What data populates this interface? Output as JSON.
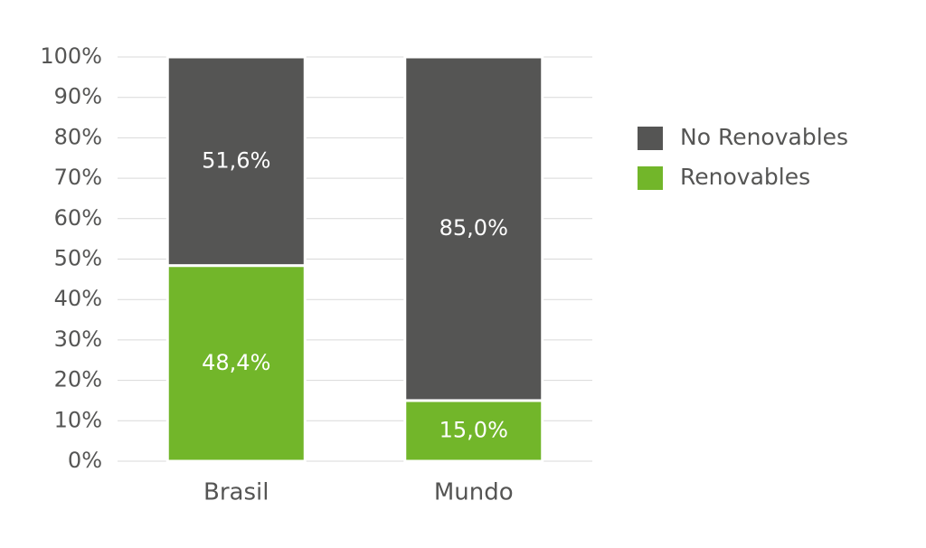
{
  "chart_data": {
    "type": "stacked-bar",
    "categories": [
      "Brasil",
      "Mundo"
    ],
    "series": [
      {
        "name": "Renovables",
        "color": "#72b62a",
        "values": [
          48.4,
          15.0
        ],
        "value_labels": [
          "48,4%",
          "15,0%"
        ]
      },
      {
        "name": "No Renovables",
        "color": "#555554",
        "values": [
          51.6,
          85.0
        ],
        "value_labels": [
          "51,6%",
          "85,0%"
        ]
      }
    ],
    "ylim": [
      0,
      100
    ],
    "yticks": [
      {
        "value": 0,
        "label": "0%"
      },
      {
        "value": 10,
        "label": "10%"
      },
      {
        "value": 20,
        "label": "20%"
      },
      {
        "value": 30,
        "label": "30%"
      },
      {
        "value": 40,
        "label": "40%"
      },
      {
        "value": 50,
        "label": "50%"
      },
      {
        "value": 60,
        "label": "60%"
      },
      {
        "value": 70,
        "label": "70%"
      },
      {
        "value": 80,
        "label": "80%"
      },
      {
        "value": 90,
        "label": "90%"
      },
      {
        "value": 100,
        "label": "100%"
      }
    ],
    "grid": true,
    "legend": "right"
  }
}
